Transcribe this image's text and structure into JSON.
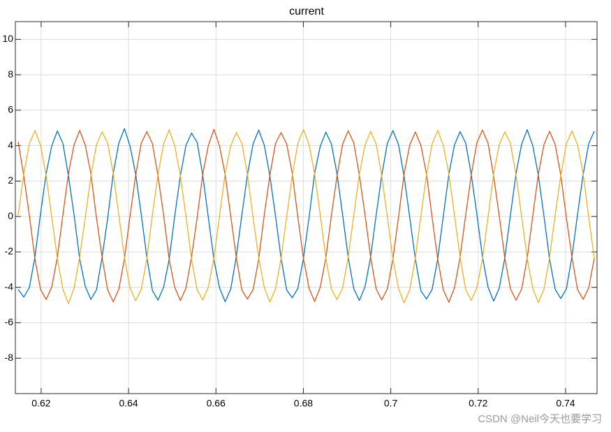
{
  "chart_data": {
    "type": "line",
    "title": "current",
    "x": [
      0.61474,
      0.61602,
      0.6173,
      0.61858,
      0.61986,
      0.62114,
      0.62242,
      0.6237,
      0.62498,
      0.62626,
      0.62754,
      0.62882,
      0.6301,
      0.63138,
      0.63266,
      0.63394,
      0.63522,
      0.6365,
      0.63778,
      0.63906,
      0.64034,
      0.64162,
      0.6429,
      0.64418,
      0.64546,
      0.64674,
      0.64802,
      0.6493,
      0.65058,
      0.65186,
      0.65314,
      0.65442,
      0.6557,
      0.65698,
      0.65826,
      0.65954,
      0.66082,
      0.6621,
      0.66338,
      0.66466,
      0.66594,
      0.66722,
      0.6685,
      0.66978,
      0.67106,
      0.67234,
      0.67362,
      0.6749,
      0.67618,
      0.67746,
      0.67874,
      0.68002,
      0.6813,
      0.68258,
      0.68386,
      0.68514,
      0.68642,
      0.6877,
      0.68898,
      0.69026,
      0.69154,
      0.69282,
      0.6941,
      0.69538,
      0.69666,
      0.69794,
      0.69922,
      0.7005,
      0.70178,
      0.70306,
      0.70434,
      0.70562,
      0.7069,
      0.70818,
      0.70946,
      0.71074,
      0.71202,
      0.7133,
      0.71458,
      0.71586,
      0.71714,
      0.71842,
      0.7197,
      0.72098,
      0.72226,
      0.72354,
      0.72482,
      0.7261,
      0.72738,
      0.72866,
      0.72994,
      0.73122,
      0.7325,
      0.73378,
      0.73506,
      0.73634,
      0.73762,
      0.7389,
      0.74018,
      0.74146,
      0.74274,
      0.74402,
      0.7453,
      0.74658
    ],
    "series": [
      {
        "color": "#0072BD",
        "values": [
          -4.12,
          -4.55,
          -4.01,
          -2.28,
          0.15,
          2.41,
          3.98,
          4.83,
          4.12,
          2.27,
          0.08,
          -2.41,
          -3.95,
          -4.68,
          -4.14,
          -2.31,
          -0.1,
          2.44,
          4.15,
          4.96,
          3.97,
          2.41,
          0.12,
          -2.29,
          -4.18,
          -4.72,
          -3.99,
          -2.42,
          0.05,
          2.3,
          4.02,
          4.71,
          4.18,
          2.33,
          -0.07,
          -2.44,
          -4.03,
          -4.81,
          -4.1,
          -2.25,
          0.11,
          2.38,
          4.1,
          4.88,
          4.02,
          2.29,
          0.04,
          -2.36,
          -4.15,
          -4.59,
          -4.06,
          -2.37,
          -0.06,
          2.45,
          3.96,
          4.76,
          4.09,
          2.4,
          0.1,
          -2.31,
          -4.08,
          -4.74,
          -3.97,
          -2.3,
          0.09,
          2.33,
          4.13,
          4.85,
          4.05,
          2.25,
          -0.05,
          -2.39,
          -4.2,
          -4.66,
          -4.12,
          -2.4,
          0.02,
          2.39,
          4.04,
          4.79,
          4.14,
          2.36,
          0.13,
          -2.27,
          -3.99,
          -4.78,
          -4.05,
          -2.33,
          0.07,
          2.42,
          4.08,
          4.9,
          3.99,
          2.31,
          0.01,
          -2.42,
          -4.11,
          -4.63,
          -4.09,
          -2.26,
          0.12,
          2.37,
          4.11,
          4.82
        ]
      },
      {
        "color": "#D95319",
        "values": [
          4.21,
          2.3,
          0.06,
          -2.4,
          -4.12,
          -4.69,
          -3.98,
          -2.31,
          0.1,
          2.44,
          4.05,
          4.86,
          4.02,
          2.41,
          -0.08,
          -2.29,
          -4.15,
          -4.82,
          -4.1,
          -2.38,
          0.03,
          2.3,
          4.14,
          4.79,
          4.11,
          2.28,
          0.09,
          -2.43,
          -4.01,
          -4.75,
          -4.04,
          -2.27,
          -0.06,
          2.39,
          4.01,
          4.92,
          3.97,
          2.36,
          0.02,
          -2.32,
          -4.17,
          -4.66,
          -4.13,
          -2.41,
          0.11,
          2.33,
          4.12,
          4.74,
          4.09,
          2.43,
          -0.04,
          -2.37,
          -4.05,
          -4.8,
          -3.99,
          -2.34,
          0.07,
          2.28,
          4.08,
          4.84,
          4.15,
          2.32,
          0.1,
          -2.28,
          -4.1,
          -4.71,
          -4.08,
          -2.39,
          -0.02,
          2.42,
          4.03,
          4.77,
          4.0,
          2.39,
          -0.05,
          -2.41,
          -4.14,
          -4.84,
          -4.02,
          -2.3,
          0.08,
          2.35,
          4.16,
          4.88,
          4.13,
          2.27,
          0.04,
          -2.35,
          -4.08,
          -4.73,
          -4.11,
          -2.36,
          0.05,
          2.4,
          4.06,
          4.81,
          4.06,
          2.34,
          -0.07,
          -2.3,
          -4.13,
          -4.68,
          -4.03,
          -2.33
        ]
      },
      {
        "color": "#EDB120",
        "values": [
          0.08,
          2.4,
          4.12,
          4.85,
          4.02,
          2.31,
          -0.04,
          -2.38,
          -4.11,
          -4.92,
          -4.03,
          -2.29,
          -0.06,
          2.29,
          4.05,
          4.78,
          4.14,
          2.42,
          0.07,
          -2.3,
          -4.05,
          -4.76,
          -4.12,
          -2.4,
          0.1,
          2.37,
          4.1,
          4.89,
          3.98,
          2.28,
          0.02,
          -2.44,
          -4.14,
          -4.71,
          -3.99,
          -2.33,
          0.03,
          2.43,
          3.99,
          4.74,
          4.11,
          2.36,
          -0.08,
          -2.32,
          -4.02,
          -4.83,
          -4.09,
          -2.37,
          -0.02,
          2.31,
          4.13,
          4.91,
          4.06,
          2.4,
          0.09,
          -2.36,
          -4.1,
          -4.69,
          -4.05,
          -2.28,
          0.07,
          2.38,
          4.03,
          4.8,
          4.1,
          2.27,
          -0.03,
          -2.41,
          -4.08,
          -4.88,
          -4.14,
          -2.35,
          0.05,
          2.34,
          4.09,
          4.86,
          4.0,
          2.39,
          0.06,
          -2.29,
          -4.13,
          -4.74,
          -4.01,
          -2.42,
          -0.04,
          2.42,
          4.06,
          4.77,
          4.13,
          2.33,
          0.01,
          -2.37,
          -4.06,
          -4.86,
          -4.1,
          -2.31,
          0.09,
          2.3,
          4.11,
          4.83,
          4.04,
          2.41,
          -0.05,
          -2.39
        ]
      }
    ],
    "xlim": [
      0.6141,
      0.7472
    ],
    "xticks": [
      0.62,
      0.64,
      0.66,
      0.68,
      0.7,
      0.72,
      0.74
    ],
    "ylim": [
      -10,
      11
    ],
    "yticks": [
      -8,
      -6,
      -4,
      -2,
      0,
      2,
      4,
      6,
      8,
      10
    ],
    "grid": true,
    "watermark": "CSDN @Neil今天也要学习"
  }
}
